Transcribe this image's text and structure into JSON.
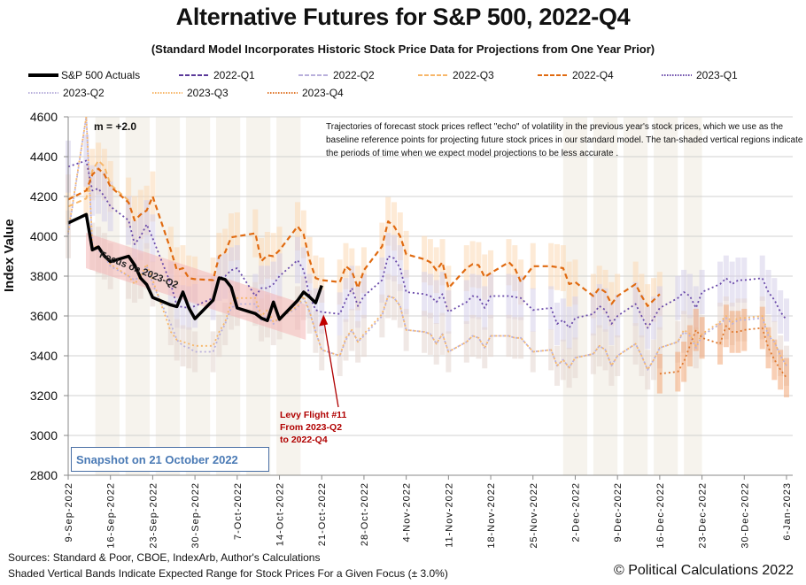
{
  "chart_data": {
    "type": "line",
    "title": "Alternative Futures for S&P 500, 2022-Q4",
    "subtitle": "(Standard Model Incorporates Historic Stock Price Data for Projections from One Year Prior)",
    "xlabel": "",
    "ylabel": "Index Value",
    "ylim": [
      2800,
      4600
    ],
    "yticks": [
      2800,
      3000,
      3200,
      3400,
      3600,
      3800,
      4000,
      4200,
      4400,
      4600
    ],
    "x_start": "2022-09-09",
    "x_end": "2023-01-06",
    "xtick_labels": [
      "9-Sep-2022",
      "16-Sep-2022",
      "23-Sep-2022",
      "30-Sep-2022",
      "7-Oct-2022",
      "14-Oct-2022",
      "21-Oct-2022",
      "28-Oct-2022",
      "4-Nov-2022",
      "11-Nov-2022",
      "18-Nov-2022",
      "25-Nov-2022",
      "2-Dec-2022",
      "9-Dec-2022",
      "16-Dec-2022",
      "23-Dec-2022",
      "30-Dec-2022",
      "6-Jan-2023"
    ],
    "grid": true,
    "legend_position": "top",
    "legend": [
      {
        "name": "S&P 500 Actuals",
        "color": "#000000",
        "style": "solid"
      },
      {
        "name": "2022-Q1",
        "color": "#5b3a9a",
        "style": "dashed"
      },
      {
        "name": "2022-Q2",
        "color": "#b9b0dc",
        "style": "dashed"
      },
      {
        "name": "2022-Q3",
        "color": "#f7b76a",
        "style": "dashed"
      },
      {
        "name": "2022-Q4",
        "color": "#e06a10",
        "style": "dashed"
      },
      {
        "name": "2023-Q1",
        "color": "#6a4aaa",
        "style": "dotted"
      },
      {
        "name": "2023-Q2",
        "color": "#b9b0dc",
        "style": "dotted"
      },
      {
        "name": "2023-Q3",
        "color": "#f7b76a",
        "style": "dotted"
      },
      {
        "name": "2023-Q4",
        "color": "#e07a30",
        "style": "dotted"
      }
    ],
    "series": [
      {
        "name": "S&P 500 Actuals",
        "days": [
          0,
          3,
          4,
          5,
          6,
          7,
          10,
          11,
          12,
          13,
          14,
          17,
          18,
          19,
          20,
          21,
          24,
          25,
          26,
          27,
          28,
          31,
          32,
          33,
          34,
          35,
          38,
          39,
          40,
          41,
          42
        ],
        "values": [
          4067,
          4110,
          3932,
          3946,
          3901,
          3873,
          3900,
          3856,
          3790,
          3758,
          3693,
          3655,
          3647,
          3720,
          3640,
          3586,
          3679,
          3791,
          3783,
          3745,
          3640,
          3612,
          3589,
          3577,
          3670,
          3583,
          3678,
          3720,
          3695,
          3666,
          3753
        ]
      },
      {
        "name": "2022-Q4",
        "days": [
          0,
          3,
          4,
          5,
          6,
          7,
          10,
          11,
          12,
          13,
          14,
          17,
          18,
          19,
          20,
          21,
          24,
          25,
          26,
          27,
          28,
          31,
          32,
          33,
          34,
          35,
          38,
          39,
          40,
          41,
          42,
          45,
          46,
          47,
          48,
          49,
          52,
          53,
          54,
          55,
          56,
          59,
          60,
          61,
          62,
          63,
          66,
          67,
          68,
          69,
          70,
          73,
          74,
          75,
          77,
          80,
          81,
          82,
          83,
          84,
          87,
          88,
          89,
          90,
          91,
          94,
          95,
          96,
          97,
          98
        ],
        "values": [
          4185,
          4230,
          4310,
          4340,
          4310,
          4250,
          4170,
          4080,
          4110,
          4130,
          4200,
          3930,
          3830,
          3840,
          3790,
          3785,
          3780,
          3900,
          3920,
          3995,
          4000,
          4015,
          3875,
          3905,
          3900,
          3930,
          4050,
          4010,
          3880,
          3790,
          3780,
          3770,
          3850,
          3825,
          3740,
          3830,
          3950,
          4075,
          4050,
          4000,
          3910,
          3885,
          3870,
          3830,
          3870,
          3740,
          3840,
          3860,
          3855,
          3795,
          3815,
          3870,
          3840,
          3770,
          3850,
          3850,
          3845,
          3840,
          3760,
          3770,
          3700,
          3740,
          3720,
          3660,
          3700,
          3760,
          3700,
          3650,
          3680,
          3710
        ]
      },
      {
        "name": "2022-Q3",
        "days": [
          0,
          3,
          4,
          5,
          6,
          7,
          10
        ],
        "values": [
          4150,
          4190,
          4330,
          4380,
          4350,
          4260,
          4180
        ]
      },
      {
        "name": "2023-Q1",
        "days": [
          0,
          3,
          4,
          5,
          6,
          7,
          10,
          11,
          12,
          13,
          14,
          17,
          18,
          19,
          20,
          21,
          24,
          25,
          26,
          27,
          28,
          31,
          32,
          33,
          34,
          35,
          38,
          39,
          40,
          41,
          42,
          45,
          46,
          47,
          48,
          49,
          52,
          53,
          54,
          55,
          56,
          59,
          60,
          61,
          62,
          63,
          66,
          67,
          68,
          69,
          70,
          73,
          74,
          75,
          77,
          80,
          81,
          82,
          83,
          84,
          87,
          88,
          89,
          90,
          91,
          94,
          95,
          96,
          97,
          98,
          101,
          102,
          103,
          104,
          105,
          108,
          109,
          110,
          111,
          112,
          115,
          116,
          117,
          118,
          119
        ],
        "values": [
          4350,
          4380,
          4230,
          4240,
          4200,
          4150,
          4080,
          3960,
          4000,
          4060,
          3990,
          3760,
          3650,
          3645,
          3640,
          3650,
          3690,
          3790,
          3800,
          3830,
          3840,
          3700,
          3740,
          3740,
          3760,
          3800,
          3880,
          3830,
          3700,
          3630,
          3620,
          3610,
          3680,
          3740,
          3650,
          3700,
          3780,
          3900,
          3890,
          3840,
          3720,
          3710,
          3700,
          3670,
          3710,
          3620,
          3670,
          3700,
          3695,
          3640,
          3700,
          3700,
          3695,
          3690,
          3630,
          3640,
          3560,
          3580,
          3540,
          3590,
          3610,
          3650,
          3630,
          3560,
          3600,
          3660,
          3600,
          3540,
          3590,
          3640,
          3690,
          3720,
          3700,
          3640,
          3720,
          3760,
          3790,
          3760,
          3780,
          3780,
          3790,
          3720,
          3680,
          3620,
          3580
        ]
      },
      {
        "name": "2023-Q2",
        "days": [
          0,
          3,
          4,
          5,
          6,
          7,
          10,
          11,
          12,
          13,
          14,
          17,
          18,
          19,
          20,
          21,
          24,
          25,
          26,
          27,
          28,
          31,
          32,
          33,
          34,
          35,
          38,
          39,
          40,
          41,
          42,
          45,
          46,
          47,
          48,
          49,
          52,
          53,
          54,
          55,
          56,
          59,
          60,
          61,
          62,
          63,
          66,
          67,
          68,
          69,
          70,
          73,
          74,
          75,
          77,
          80,
          81,
          82,
          83,
          84,
          87,
          88,
          89,
          90,
          91,
          94,
          95,
          96,
          97,
          98,
          101,
          102,
          103,
          104,
          105,
          108,
          109,
          110,
          111,
          112,
          115,
          116,
          117,
          118,
          119
        ],
        "values": [
          4010,
          4600,
          3950,
          3930,
          3900,
          3850,
          3800,
          3780,
          3800,
          3850,
          3760,
          3560,
          3480,
          3450,
          3440,
          3420,
          3420,
          3500,
          3560,
          3640,
          3660,
          3660,
          3580,
          3600,
          3560,
          3590,
          3640,
          3690,
          3620,
          3520,
          3430,
          3400,
          3480,
          3530,
          3470,
          3500,
          3600,
          3700,
          3690,
          3650,
          3530,
          3520,
          3510,
          3460,
          3510,
          3420,
          3470,
          3500,
          3490,
          3440,
          3500,
          3500,
          3490,
          3490,
          3420,
          3430,
          3350,
          3380,
          3340,
          3390,
          3410,
          3450,
          3430,
          3350,
          3400,
          3460,
          3400,
          3330,
          3380,
          3440,
          3470,
          3520,
          3500,
          3440,
          3500,
          3560,
          3590,
          3560,
          3580,
          3580,
          3590,
          3500,
          3470,
          3400,
          3350
        ]
      },
      {
        "name": "2023-Q3",
        "days": [
          0,
          3,
          4,
          5,
          6,
          7,
          10,
          11,
          12,
          13,
          14,
          17,
          18,
          19,
          20,
          21,
          24,
          25,
          26,
          27,
          28,
          31,
          32,
          33,
          34,
          35,
          38,
          39,
          40,
          41,
          42,
          45,
          46,
          47,
          48,
          49,
          52,
          53,
          54,
          55,
          56,
          59,
          60,
          61,
          62,
          63,
          66,
          67,
          68,
          69,
          70,
          73,
          74,
          75,
          77,
          80,
          81,
          82,
          83,
          84,
          87,
          88,
          89,
          90,
          91,
          94,
          95,
          96,
          97,
          98,
          101,
          102,
          103,
          104,
          105,
          108,
          109,
          110,
          111,
          112,
          115,
          116,
          117,
          118,
          119
        ],
        "values": [
          4020,
          4600,
          3960,
          3940,
          3900,
          3860,
          3800,
          3760,
          3800,
          3860,
          3780,
          3520,
          3480,
          3470,
          3460,
          3450,
          3450,
          3520,
          3570,
          3670,
          3690,
          3690,
          3600,
          3630,
          3570,
          3590,
          3650,
          3700,
          3620,
          3520,
          3430,
          3400,
          3490,
          3530,
          3470,
          3510,
          3610,
          3700,
          3690,
          3650,
          3530,
          3520,
          3510,
          3460,
          3510,
          3420,
          3470,
          3500,
          3490,
          3440,
          3500,
          3500,
          3490,
          3490,
          3420,
          3430,
          3350,
          3380,
          3340,
          3390,
          3410,
          3450,
          3430,
          3350,
          3400,
          3460,
          3400,
          3330,
          3380,
          3440,
          3470,
          3530,
          3510,
          3450,
          3510,
          3570,
          3600,
          3570,
          3590,
          3590,
          3600,
          3510,
          3470,
          3400,
          3350
        ]
      },
      {
        "name": "2023-Q4",
        "days": [
          98,
          101,
          102,
          103,
          104,
          105,
          108,
          109,
          110,
          111,
          112,
          115,
          116,
          117,
          118,
          119
        ],
        "values": [
          3310,
          3320,
          3370,
          3450,
          3530,
          3490,
          3460,
          3550,
          3520,
          3520,
          3530,
          3540,
          3440,
          3380,
          3330,
          3290
        ]
      }
    ],
    "focus_band": {
      "label": "Focus on 2023-Q2",
      "days": [
        0,
        42
      ],
      "center_values": [
        3920,
        3560
      ],
      "color": "#f4b6b6"
    },
    "uncertain_periods": [
      {
        "days": [
          4.5,
          38.5
        ]
      },
      {
        "days": [
          82,
          105
        ]
      }
    ],
    "annotations": {
      "m_value": "m = +2.0",
      "note": "Trajectories of forecast stock prices reflect \"echo\" of volatility in  the previous year's stock prices, which we use as the baseline reference points for projecting future stock prices in our standard model.   The tan-shaded vertical regions indicate the periods of time when we expect model projections to be less accurate .",
      "snapshot": "Snapshot on 21 October 2022",
      "levy_flight": [
        "Levy Flight #11",
        "From 2023-Q2",
        "to 2022-Q4"
      ],
      "levy_flight_target_day": 42,
      "levy_flight_target_value": 3620
    }
  },
  "footer": {
    "sources": "Sources: Standard & Poor, CBOE, IndexArb, Author's Calculations",
    "bands_note": "Shaded Vertical Bands Indicate Expected Range for Stock Prices For a Given Focus (± 3.0%)",
    "copyright": "© Political Calculations 2022"
  }
}
